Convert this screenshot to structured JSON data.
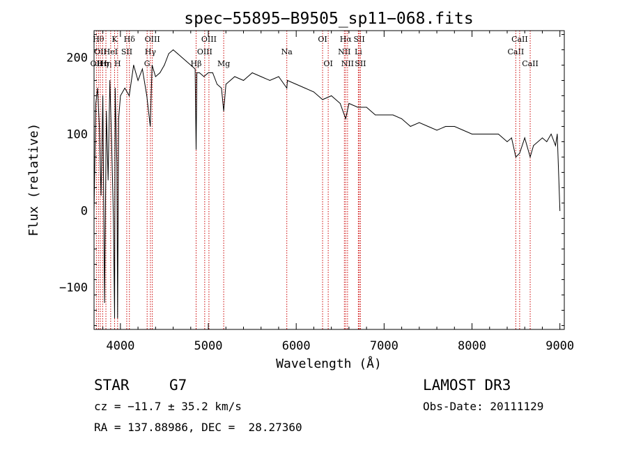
{
  "chart_data": {
    "type": "line",
    "title": "spec−55895−B9505_sp11−068.fits",
    "xlabel": "Wavelength (Å)",
    "ylabel": "Flux (relative)",
    "xlim": [
      3700,
      9050
    ],
    "ylim": [
      -155,
      235
    ],
    "xticks": [
      4000,
      5000,
      6000,
      7000,
      8000,
      9000
    ],
    "xtick_labels": [
      "4000",
      "5000",
      "6000",
      "7000",
      "8000",
      "9000"
    ],
    "yticks": [
      -100,
      0,
      100,
      200
    ],
    "ytick_labels": [
      "−100",
      "0",
      "100",
      "200"
    ],
    "series": [
      {
        "name": "spectrum",
        "x": [
          3700,
          3720,
          3740,
          3760,
          3780,
          3800,
          3820,
          3840,
          3860,
          3880,
          3900,
          3920,
          3934,
          3940,
          3960,
          3968,
          3980,
          4000,
          4050,
          4100,
          4150,
          4200,
          4250,
          4300,
          4340,
          4360,
          4400,
          4450,
          4500,
          4550,
          4600,
          4650,
          4700,
          4750,
          4800,
          4850,
          4861,
          4870,
          4900,
          4950,
          5000,
          5050,
          5100,
          5150,
          5175,
          5200,
          5300,
          5400,
          5500,
          5600,
          5700,
          5800,
          5893,
          5900,
          6000,
          6100,
          6200,
          6300,
          6400,
          6500,
          6563,
          6600,
          6700,
          6800,
          6900,
          7000,
          7100,
          7200,
          7300,
          7400,
          7500,
          7600,
          7700,
          7800,
          7900,
          8000,
          8100,
          8200,
          8300,
          8400,
          8450,
          8498,
          8542,
          8600,
          8662,
          8700,
          8800,
          8850,
          8900,
          8950,
          8970,
          9000
        ],
        "y": [
          0,
          140,
          160,
          110,
          20,
          150,
          -120,
          130,
          40,
          170,
          90,
          -10,
          -140,
          160,
          60,
          -140,
          120,
          150,
          160,
          150,
          190,
          170,
          185,
          150,
          110,
          190,
          175,
          180,
          190,
          205,
          210,
          205,
          200,
          195,
          190,
          185,
          80,
          180,
          180,
          175,
          180,
          180,
          165,
          160,
          130,
          165,
          175,
          170,
          180,
          175,
          170,
          175,
          160,
          170,
          165,
          160,
          155,
          145,
          150,
          140,
          120,
          140,
          135,
          135,
          125,
          125,
          125,
          120,
          110,
          115,
          110,
          105,
          110,
          110,
          105,
          100,
          100,
          100,
          100,
          90,
          95,
          70,
          75,
          95,
          70,
          85,
          95,
          90,
          100,
          85,
          100,
          0
        ]
      }
    ],
    "lines": [
      {
        "wl": 3727,
        "label": "OII",
        "row": 2
      },
      {
        "wl": 3750,
        "label": "Hθ",
        "row": 0
      },
      {
        "wl": 3771,
        "label": "OII",
        "row": 1
      },
      {
        "wl": 3798,
        "label": "Hη",
        "row": 2
      },
      {
        "wl": 3835,
        "label": "Hη",
        "row": 2
      },
      {
        "wl": 3889,
        "label": "HeI",
        "row": 1
      },
      {
        "wl": 3934,
        "label": "K",
        "row": 0
      },
      {
        "wl": 3968,
        "label": "H",
        "row": 2
      },
      {
        "wl": 4072,
        "label": "SII",
        "row": 1
      },
      {
        "wl": 4102,
        "label": "Hδ",
        "row": 0
      },
      {
        "wl": 4304,
        "label": "G",
        "row": 2
      },
      {
        "wl": 4341,
        "label": "Hγ",
        "row": 1
      },
      {
        "wl": 4363,
        "label": "OIII",
        "row": 0
      },
      {
        "wl": 4861,
        "label": "Hβ",
        "row": 2
      },
      {
        "wl": 4959,
        "label": "OIII",
        "row": 1
      },
      {
        "wl": 5007,
        "label": "OIII",
        "row": 0
      },
      {
        "wl": 5175,
        "label": "Mg",
        "row": 2
      },
      {
        "wl": 5893,
        "label": "Na",
        "row": 1
      },
      {
        "wl": 6300,
        "label": "OI",
        "row": 0
      },
      {
        "wl": 6364,
        "label": "OI",
        "row": 2
      },
      {
        "wl": 6548,
        "label": "NII",
        "row": 1
      },
      {
        "wl": 6563,
        "label": "Hα",
        "row": 0
      },
      {
        "wl": 6584,
        "label": "NII",
        "row": 2
      },
      {
        "wl": 6707,
        "label": "Li",
        "row": 1
      },
      {
        "wl": 6717,
        "label": "SII",
        "row": 0
      },
      {
        "wl": 6731,
        "label": "SII",
        "row": 2
      },
      {
        "wl": 8498,
        "label": "CaII",
        "row": 1
      },
      {
        "wl": 8542,
        "label": "CaII",
        "row": 0
      },
      {
        "wl": 8662,
        "label": "CaII",
        "row": 2
      }
    ]
  },
  "info": {
    "object_type": "STAR",
    "subclass": "G7",
    "redshift": "cz = −11.7 ± 35.2 km/s",
    "coords": "RA = 137.88986, DEC =  28.27360",
    "survey": "LAMOST DR3",
    "obs_date": "Obs-Date: 20111129"
  },
  "colors": {
    "line_marker": "#cc0000",
    "spectrum": "#000000",
    "axes": "#000000"
  }
}
